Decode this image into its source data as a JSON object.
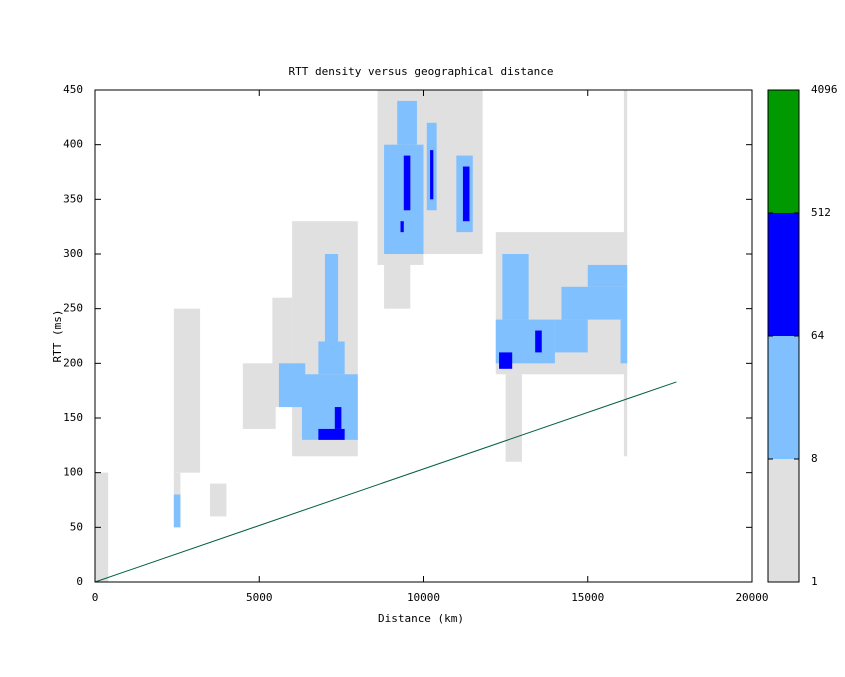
{
  "chart_data": {
    "type": "heatmap",
    "title": "RTT density versus geographical distance",
    "x_label": "Distance (km)",
    "y_label": "RTT (ms)",
    "xlim": [
      0,
      20000
    ],
    "ylim": [
      0,
      450
    ],
    "xticks": [
      0,
      5000,
      10000,
      15000,
      20000
    ],
    "yticks": [
      0,
      50,
      100,
      150,
      200,
      250,
      300,
      350,
      400,
      450
    ],
    "colorbar": {
      "lim": [
        1,
        4096
      ],
      "log": true,
      "ticks": [
        1,
        8,
        64,
        512,
        4096
      ],
      "colors": [
        "#e0e0e0",
        "#80c0ff",
        "#0000ff",
        "#009900"
      ]
    },
    "cells": [
      {
        "x": [
          6000,
          8000
        ],
        "y": [
          115,
          330
        ],
        "count": 3
      },
      {
        "x": [
          8600,
          10000
        ],
        "y": [
          290,
          450
        ],
        "count": 3
      },
      {
        "x": [
          10000,
          11800
        ],
        "y": [
          300,
          450
        ],
        "count": 3
      },
      {
        "x": [
          8800,
          9600
        ],
        "y": [
          250,
          300
        ],
        "count": 2
      },
      {
        "x": [
          12200,
          16200
        ],
        "y": [
          190,
          320
        ],
        "count": 3
      },
      {
        "x": [
          5400,
          6000
        ],
        "y": [
          160,
          260
        ],
        "count": 2
      },
      {
        "x": [
          4500,
          5500
        ],
        "y": [
          140,
          200
        ],
        "count": 1
      },
      {
        "x": [
          2400,
          3200
        ],
        "y": [
          100,
          250
        ],
        "count": 1
      },
      {
        "x": [
          16100,
          16200
        ],
        "y": [
          115,
          450
        ],
        "count": 2
      },
      {
        "x": [
          0,
          400
        ],
        "y": [
          0,
          100
        ],
        "count": 1
      },
      {
        "x": [
          2400,
          2600
        ],
        "y": [
          50,
          100
        ],
        "count": 1
      },
      {
        "x": [
          3500,
          4000
        ],
        "y": [
          60,
          90
        ],
        "count": 1
      },
      {
        "x": [
          12500,
          13000
        ],
        "y": [
          110,
          190
        ],
        "count": 1
      },
      {
        "x": [
          6300,
          8000
        ],
        "y": [
          130,
          190
        ],
        "count": 20
      },
      {
        "x": [
          6800,
          7600
        ],
        "y": [
          190,
          220
        ],
        "count": 12
      },
      {
        "x": [
          7000,
          7400
        ],
        "y": [
          220,
          300
        ],
        "count": 10
      },
      {
        "x": [
          5600,
          6400
        ],
        "y": [
          160,
          200
        ],
        "count": 10
      },
      {
        "x": [
          8800,
          10000
        ],
        "y": [
          300,
          400
        ],
        "count": 15
      },
      {
        "x": [
          9200,
          9800
        ],
        "y": [
          400,
          440
        ],
        "count": 12
      },
      {
        "x": [
          10100,
          10400
        ],
        "y": [
          340,
          420
        ],
        "count": 12
      },
      {
        "x": [
          11000,
          11500
        ],
        "y": [
          320,
          390
        ],
        "count": 12
      },
      {
        "x": [
          12200,
          14000
        ],
        "y": [
          200,
          240
        ],
        "count": 20
      },
      {
        "x": [
          12400,
          13200
        ],
        "y": [
          240,
          300
        ],
        "count": 12
      },
      {
        "x": [
          14200,
          16200
        ],
        "y": [
          240,
          270
        ],
        "count": 14
      },
      {
        "x": [
          15000,
          16200
        ],
        "y": [
          270,
          290
        ],
        "count": 10
      },
      {
        "x": [
          16000,
          16200
        ],
        "y": [
          200,
          240
        ],
        "count": 10
      },
      {
        "x": [
          2400,
          2600
        ],
        "y": [
          50,
          80
        ],
        "count": 10
      },
      {
        "x": [
          14000,
          15000
        ],
        "y": [
          210,
          240
        ],
        "count": 10
      },
      {
        "x": [
          6800,
          7600
        ],
        "y": [
          130,
          140
        ],
        "count": 100
      },
      {
        "x": [
          7300,
          7500
        ],
        "y": [
          140,
          160
        ],
        "count": 80
      },
      {
        "x": [
          9400,
          9600
        ],
        "y": [
          340,
          390
        ],
        "count": 80
      },
      {
        "x": [
          10200,
          10300
        ],
        "y": [
          350,
          395
        ],
        "count": 120
      },
      {
        "x": [
          11200,
          11400
        ],
        "y": [
          330,
          380
        ],
        "count": 90
      },
      {
        "x": [
          12300,
          12700
        ],
        "y": [
          195,
          210
        ],
        "count": 80
      },
      {
        "x": [
          13400,
          13600
        ],
        "y": [
          210,
          230
        ],
        "count": 70
      },
      {
        "x": [
          9300,
          9400
        ],
        "y": [
          320,
          330
        ],
        "count": 70
      }
    ],
    "line": {
      "x": [
        0,
        17700
      ],
      "y": [
        0,
        183
      ],
      "color": "#006040"
    }
  }
}
